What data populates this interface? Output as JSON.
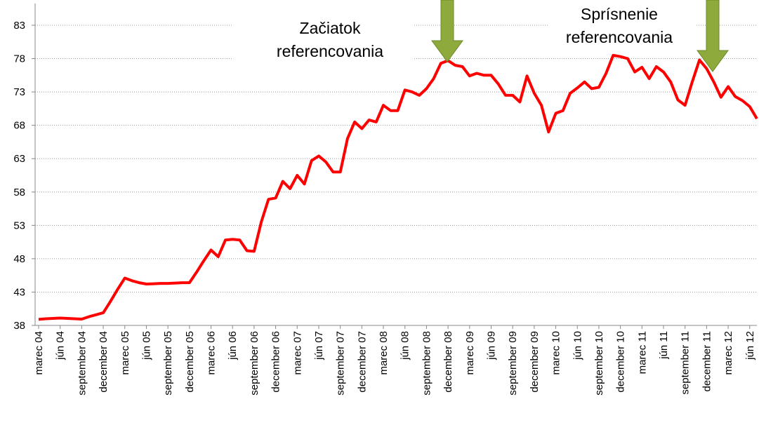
{
  "chart_data": {
    "type": "line",
    "categories": [
      "marec 04",
      null,
      null,
      "jún 04",
      null,
      null,
      "september 04",
      null,
      null,
      "december 04",
      null,
      null,
      "marec 05",
      null,
      null,
      "jún 05",
      null,
      null,
      "september 05",
      null,
      null,
      "december 05",
      null,
      null,
      "marec 06",
      null,
      null,
      "jún 06",
      null,
      null,
      "september 06",
      null,
      null,
      "december 06",
      null,
      null,
      "marec 07",
      null,
      null,
      "jún 07",
      null,
      null,
      "september 07",
      null,
      null,
      "december 07",
      null,
      null,
      "marec 08",
      null,
      null,
      "jún 08",
      null,
      null,
      "september 08",
      null,
      null,
      "december 08",
      null,
      null,
      "marec 09",
      null,
      null,
      "jún 09",
      null,
      null,
      "september 09",
      null,
      null,
      "december 09",
      null,
      null,
      "marec 10",
      null,
      null,
      "jún 10",
      null,
      null,
      "september 10",
      null,
      null,
      "december 10",
      null,
      null,
      "marec 11",
      null,
      null,
      "jún 11",
      null,
      null,
      "september 11",
      null,
      null,
      "december 11",
      null,
      null,
      "marec 12",
      null,
      null,
      "jún 12",
      null
    ],
    "values": [
      38.9,
      39.0,
      39.05,
      39.1,
      39.05,
      39.0,
      38.95,
      39.3,
      39.6,
      39.9,
      41.6,
      43.4,
      45.1,
      44.7,
      44.4,
      44.2,
      44.25,
      44.3,
      44.3,
      44.35,
      44.4,
      44.4,
      46.0,
      47.7,
      49.3,
      48.3,
      50.8,
      50.9,
      50.8,
      49.2,
      49.1,
      53.5,
      56.9,
      57.1,
      59.6,
      58.5,
      60.5,
      59.2,
      62.7,
      63.4,
      62.5,
      61.0,
      61.0,
      66.0,
      68.5,
      67.5,
      68.8,
      68.5,
      71.0,
      70.2,
      70.2,
      73.3,
      73.0,
      72.5,
      73.5,
      75.0,
      77.3,
      77.7,
      77.0,
      76.8,
      75.4,
      75.8,
      75.5,
      75.5,
      74.2,
      72.5,
      72.5,
      71.5,
      75.4,
      72.8,
      71.0,
      67.0,
      69.8,
      70.2,
      72.8,
      73.6,
      74.5,
      73.5,
      73.7,
      75.8,
      78.5,
      78.3,
      78.0,
      76.0,
      76.7,
      75.0,
      76.8,
      76.0,
      74.5,
      71.8,
      71.0,
      74.5,
      77.8,
      76.5,
      74.5,
      72.2,
      73.8,
      72.3,
      71.7,
      70.8,
      69.0
    ],
    "color": "#ff0000",
    "ylim": [
      38,
      83
    ],
    "yticks": [
      38,
      43,
      48,
      53,
      58,
      63,
      68,
      73,
      78,
      83
    ],
    "grid": true,
    "annotations": [
      {
        "lines": [
          "Začiatok",
          "referencovania"
        ]
      },
      {
        "lines": [
          "Sprísnenie",
          "referencovania"
        ]
      }
    ]
  }
}
